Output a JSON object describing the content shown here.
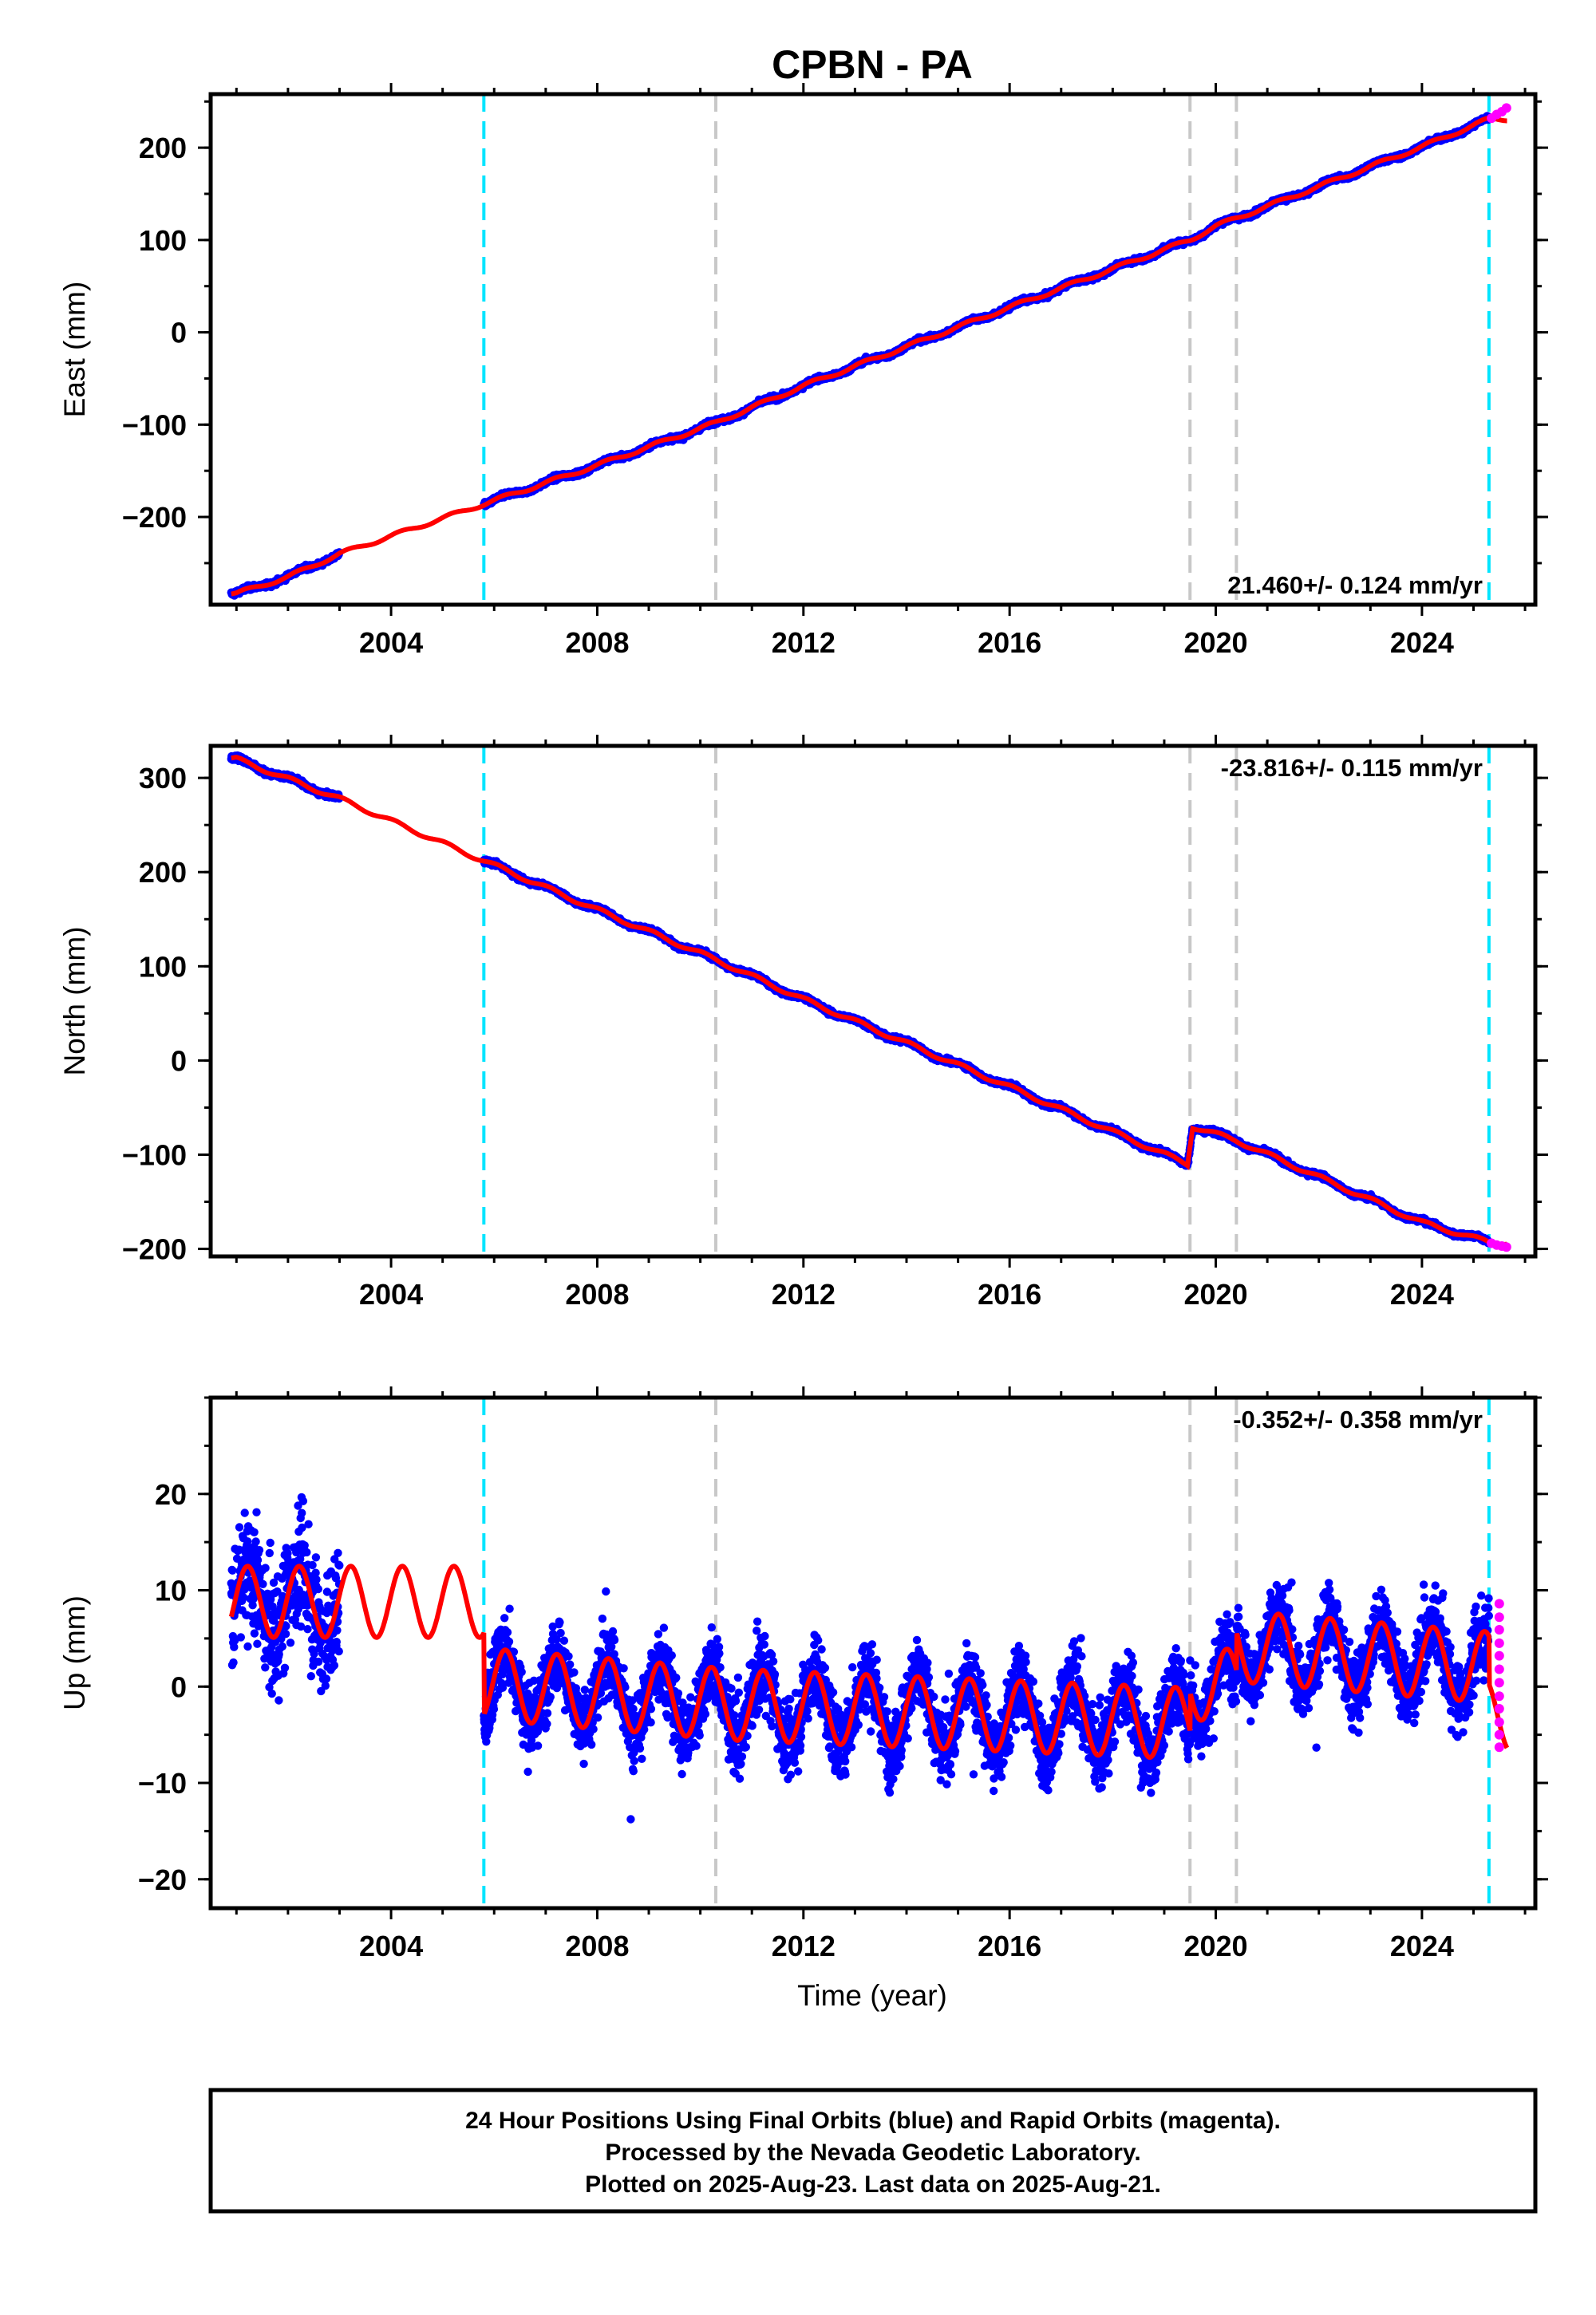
{
  "title": "CPBN - PA",
  "xlabel": "Time (year)",
  "caption": {
    "line1": "24 Hour Positions Using Final Orbits (blue) and Rapid Orbits (magenta).",
    "line2": "Processed by the Nevada Geodetic Laboratory.",
    "line3": "Plotted on 2025-Aug-23. Last data on 2025-Aug-21."
  },
  "colors": {
    "final": "#0000ff",
    "rapid": "#ff00ff",
    "model": "#ff0000",
    "equipment_change": "#00e5ff",
    "event": "#c8c8c8"
  },
  "chart_data": [
    {
      "type": "scatter",
      "panel": "east",
      "ylabel": "East (mm)",
      "rate_label": "21.460+/- 0.124 mm/yr",
      "xlim": [
        2000.5,
        2026.2
      ],
      "ylim": [
        -295,
        258
      ],
      "xticks": [
        2004,
        2008,
        2012,
        2016,
        2020,
        2024
      ],
      "yticks": [
        -200,
        -100,
        0,
        100,
        200
      ],
      "ytick_labels": [
        "−200",
        "−100",
        "0",
        "100",
        "200"
      ],
      "vlines_cyan": [
        2005.8,
        2025.3
      ],
      "vlines_gray": [
        2010.3,
        2019.5,
        2020.4
      ],
      "data_gap": [
        2003.0,
        2005.8
      ],
      "final_data": [
        [
          2001.0,
          -283
        ],
        [
          2002.0,
          -265
        ],
        [
          2003.0,
          -240
        ],
        [
          2005.8,
          -186
        ],
        [
          2008.0,
          -144
        ],
        [
          2010.3,
          -98
        ],
        [
          2012.0,
          -58
        ],
        [
          2016.0,
          27
        ],
        [
          2019.5,
          100
        ],
        [
          2020.0,
          115
        ],
        [
          2024.0,
          201
        ],
        [
          2025.3,
          231
        ]
      ],
      "rapid_data": [
        [
          2025.35,
          232
        ],
        [
          2025.45,
          236
        ],
        [
          2025.55,
          239
        ],
        [
          2025.64,
          243
        ]
      ],
      "model": {
        "t0": 2013.2,
        "intercept": -23.5,
        "rate": 21.46,
        "annual_amp": 2.5,
        "annual_phase": 0.4,
        "semiannual_amp": 0.8,
        "offsets": []
      },
      "scatter_sd": 1.8
    },
    {
      "type": "scatter",
      "panel": "north",
      "ylabel": "North (mm)",
      "rate_label": "-23.816+/- 0.115 mm/yr",
      "xlim": [
        2000.5,
        2026.2
      ],
      "ylim": [
        -208,
        334
      ],
      "xticks": [
        2004,
        2008,
        2012,
        2016,
        2020,
        2024
      ],
      "yticks": [
        -200,
        -100,
        0,
        100,
        200,
        300
      ],
      "ytick_labels": [
        "−200",
        "−100",
        "0",
        "100",
        "200",
        "300"
      ],
      "vlines_cyan": [
        2005.8,
        2025.3
      ],
      "vlines_gray": [
        2010.3,
        2019.5,
        2020.4
      ],
      "data_gap": [
        2003.0,
        2005.8
      ],
      "final_data": [
        [
          2001.0,
          320
        ],
        [
          2003.0,
          278
        ],
        [
          2005.8,
          212
        ],
        [
          2008.0,
          160
        ],
        [
          2010.3,
          107
        ],
        [
          2012.0,
          65
        ],
        [
          2016.0,
          -28
        ],
        [
          2019.45,
          -110
        ],
        [
          2019.55,
          -70
        ],
        [
          2020.4,
          -85
        ],
        [
          2024.0,
          -172
        ],
        [
          2025.3,
          -193
        ]
      ],
      "rapid_data": [
        [
          2025.35,
          -194
        ],
        [
          2025.45,
          -196
        ],
        [
          2025.55,
          -197
        ],
        [
          2025.64,
          -198
        ]
      ],
      "model": {
        "t0": 2013.2,
        "intercept": 35.5,
        "rate": -23.816,
        "annual_amp": 2.8,
        "annual_phase": 1.1,
        "semiannual_amp": 0.9,
        "offsets": [
          [
            2019.5,
            40.5
          ]
        ]
      },
      "scatter_sd": 1.8
    },
    {
      "type": "scatter",
      "panel": "up",
      "ylabel": "Up (mm)",
      "rate_label": "-0.352+/- 0.358 mm/yr",
      "xlim": [
        2000.5,
        2026.2
      ],
      "ylim": [
        -23,
        30
      ],
      "xticks": [
        2004,
        2008,
        2012,
        2016,
        2020,
        2024
      ],
      "yticks": [
        -20,
        -10,
        0,
        10,
        20
      ],
      "ytick_labels": [
        "−20",
        "−10",
        "0",
        "10",
        "20"
      ],
      "vlines_cyan": [
        2005.8,
        2025.3
      ],
      "vlines_gray": [
        2010.3,
        2019.5,
        2020.4
      ],
      "data_gap": [
        2003.0,
        2005.8
      ],
      "final_data": [
        [
          2001.0,
          9
        ],
        [
          2002.0,
          8
        ],
        [
          2003.0,
          9
        ],
        [
          2006.0,
          -2
        ],
        [
          2010.0,
          -2
        ],
        [
          2014.0,
          -3
        ],
        [
          2018.0,
          -4
        ],
        [
          2019.4,
          -8
        ],
        [
          2020.5,
          3
        ],
        [
          2022.0,
          4
        ],
        [
          2024.0,
          2
        ],
        [
          2025.3,
          -2
        ]
      ],
      "rapid_data": [
        [
          2025.5,
          8.6
        ],
        [
          2025.5,
          7.2
        ],
        [
          2025.5,
          5.9
        ],
        [
          2025.5,
          4.5
        ],
        [
          2025.5,
          3.2
        ],
        [
          2025.5,
          1.8
        ],
        [
          2025.5,
          0.4
        ],
        [
          2025.5,
          -1.0
        ],
        [
          2025.5,
          -2.3
        ],
        [
          2025.5,
          -3.7
        ],
        [
          2025.5,
          -5.0
        ],
        [
          2025.5,
          -6.3
        ]
      ],
      "model": {
        "t0": 2013.2,
        "intercept": -3.0,
        "rate": -0.352,
        "annual_amp": 3.7,
        "annual_phase": 0.2,
        "semiannual_amp": 0.4,
        "offsets": [
          [
            2005.8,
            -8.5
          ],
          [
            2019.5,
            3.5
          ],
          [
            2020.4,
            4.5
          ],
          [
            2025.3,
            -3
          ]
        ],
        "early_level": 12.0
      },
      "scatter_sd": 2.6
    }
  ]
}
